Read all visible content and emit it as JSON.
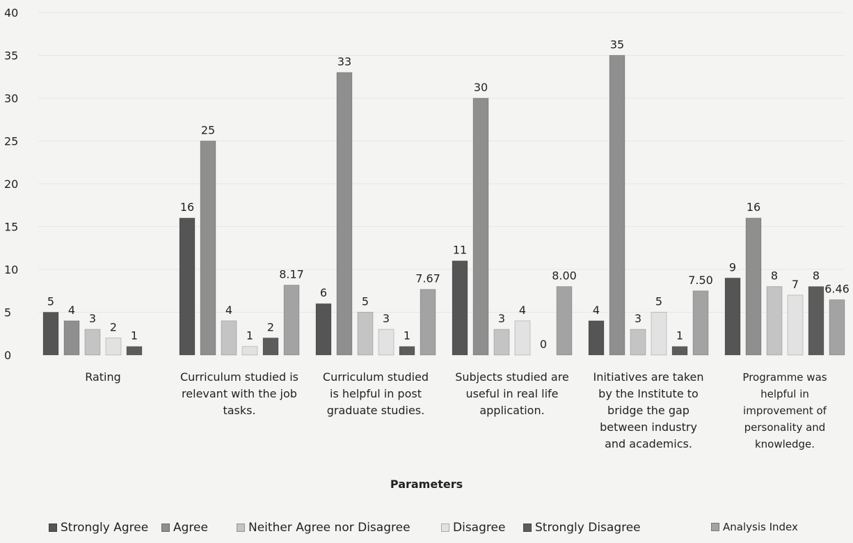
{
  "chart_data": {
    "type": "bar",
    "title": "",
    "xlabel": "Parameters",
    "ylabel": "",
    "ylim": [
      0,
      40
    ],
    "yticks": [
      0,
      5,
      10,
      15,
      20,
      25,
      30,
      35,
      40
    ],
    "grid": true,
    "legend_position": "bottom",
    "categories": [
      "Rating",
      "Curriculum studied is relevant with the job tasks.",
      "Curriculum studied is helpful in post graduate studies.",
      "Subjects studied are useful in real life application.",
      "Initiatives are taken by the Institute to bridge the gap between industry and academics.",
      "Programme was helpful in improvement of personality and knowledge."
    ],
    "category_lines": [
      [
        "Rating"
      ],
      [
        "Curriculum studied is",
        "relevant with the job",
        "tasks."
      ],
      [
        "Curriculum  studied",
        "is helpful in post",
        "graduate studies."
      ],
      [
        "Subjects studied are",
        "useful in real life",
        "application."
      ],
      [
        "Initiatives are taken",
        "by the Institute to",
        "bridge the gap",
        "between industry",
        "and academics."
      ],
      [
        "Programme was",
        "helpful in",
        "improvement of",
        "personality and",
        "knowledge."
      ]
    ],
    "series": [
      {
        "name": "Strongly Agree",
        "color": "#555555",
        "values": [
          5,
          16,
          6,
          11,
          4,
          9
        ],
        "labels": [
          "5",
          "16",
          "6",
          "11",
          "4",
          "9"
        ]
      },
      {
        "name": "Agree",
        "color": "#8f8f8f",
        "values": [
          4,
          25,
          33,
          30,
          35,
          16
        ],
        "labels": [
          "4",
          "25",
          "33",
          "30",
          "35",
          "16"
        ]
      },
      {
        "name": "Neither Agree nor Disagree",
        "color": "#c4c4c4",
        "values": [
          3,
          4,
          5,
          3,
          3,
          8
        ],
        "labels": [
          "3",
          "4",
          "5",
          "3",
          "3",
          "8"
        ]
      },
      {
        "name": "Disagree",
        "color": "#e2e2e2",
        "values": [
          2,
          1,
          3,
          4,
          5,
          7
        ],
        "labels": [
          "2",
          "1",
          "3",
          "4",
          "5",
          "7"
        ]
      },
      {
        "name": "Strongly Disagree",
        "color": "#5c5c5c",
        "values": [
          1,
          2,
          1,
          0,
          1,
          8
        ],
        "labels": [
          "1",
          "2",
          "1",
          "0",
          "1",
          "8"
        ]
      },
      {
        "name": "Analysis Index",
        "color": "#a3a3a3",
        "values": [
          null,
          8.17,
          7.67,
          8.0,
          7.5,
          6.46
        ],
        "labels": [
          "",
          "8.17",
          "7.67",
          "8.00",
          "7.50",
          "6.46"
        ]
      }
    ]
  }
}
